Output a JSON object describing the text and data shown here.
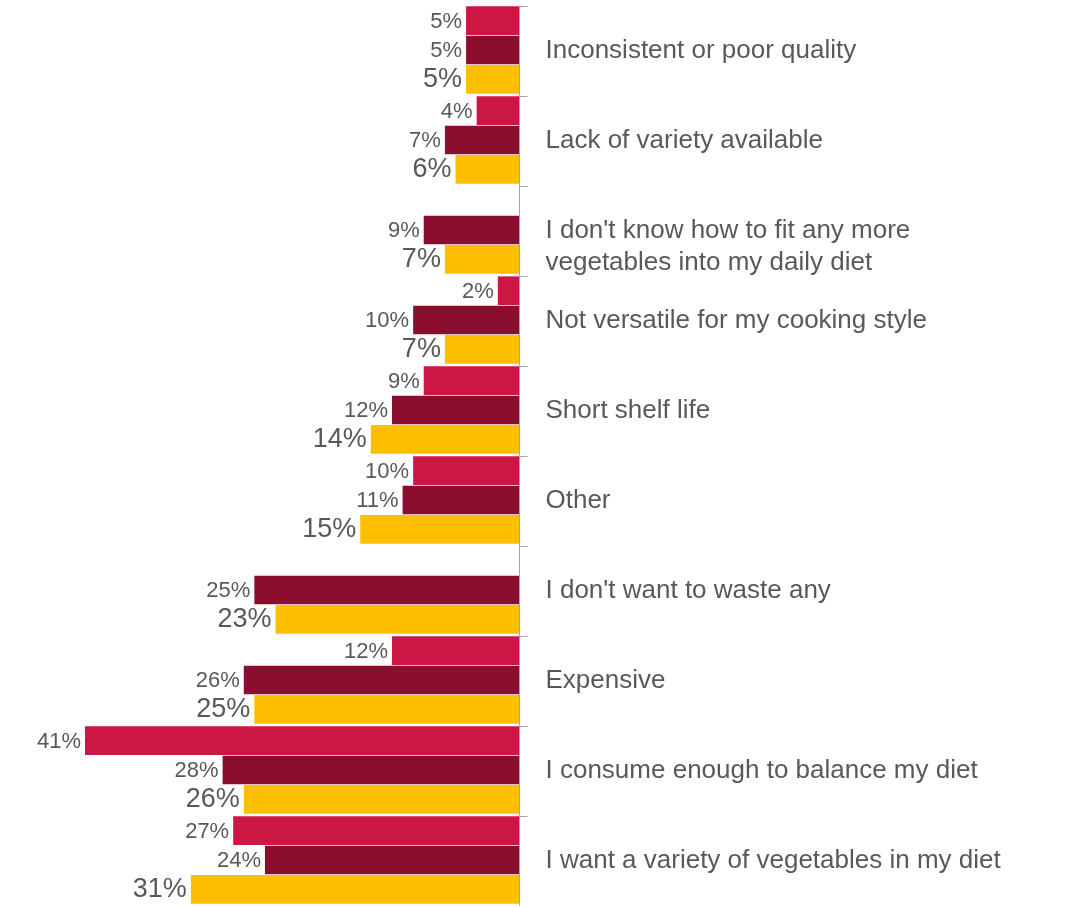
{
  "chart_data": {
    "type": "bar",
    "orientation": "horizontal",
    "categories": [
      "Inconsistent or poor quality",
      "Lack of variety available",
      "I don't know how to fit any more\nvegetables into my daily diet",
      "Not versatile for my cooking style",
      "Short shelf life",
      "Other",
      "I don't want to waste any",
      "Expensive",
      "I consume enough to balance my diet",
      "I want a variety of vegetables in my diet"
    ],
    "series": [
      {
        "color": "#cc1745",
        "values": [
          5,
          4,
          null,
          2,
          9,
          10,
          null,
          12,
          41,
          27
        ],
        "value_labels": [
          "5%",
          "4%",
          null,
          "2%",
          "9%",
          "10%",
          null,
          "12%",
          "41%",
          "27%"
        ]
      },
      {
        "color": "#8b0e2f",
        "values": [
          5,
          7,
          9,
          10,
          12,
          11,
          25,
          26,
          28,
          24
        ],
        "value_labels": [
          "5%",
          "7%",
          "9%",
          "10%",
          "12%",
          "11%",
          "25%",
          "26%",
          "28%",
          "24%"
        ]
      },
      {
        "color": "#fdbf00",
        "values": [
          5,
          6,
          7,
          7,
          14,
          15,
          23,
          25,
          26,
          31
        ],
        "value_labels": [
          "5%",
          "6%",
          "7%",
          "7%",
          "14%",
          "15%",
          "23%",
          "25%",
          "26%",
          "31%"
        ]
      }
    ]
  }
}
